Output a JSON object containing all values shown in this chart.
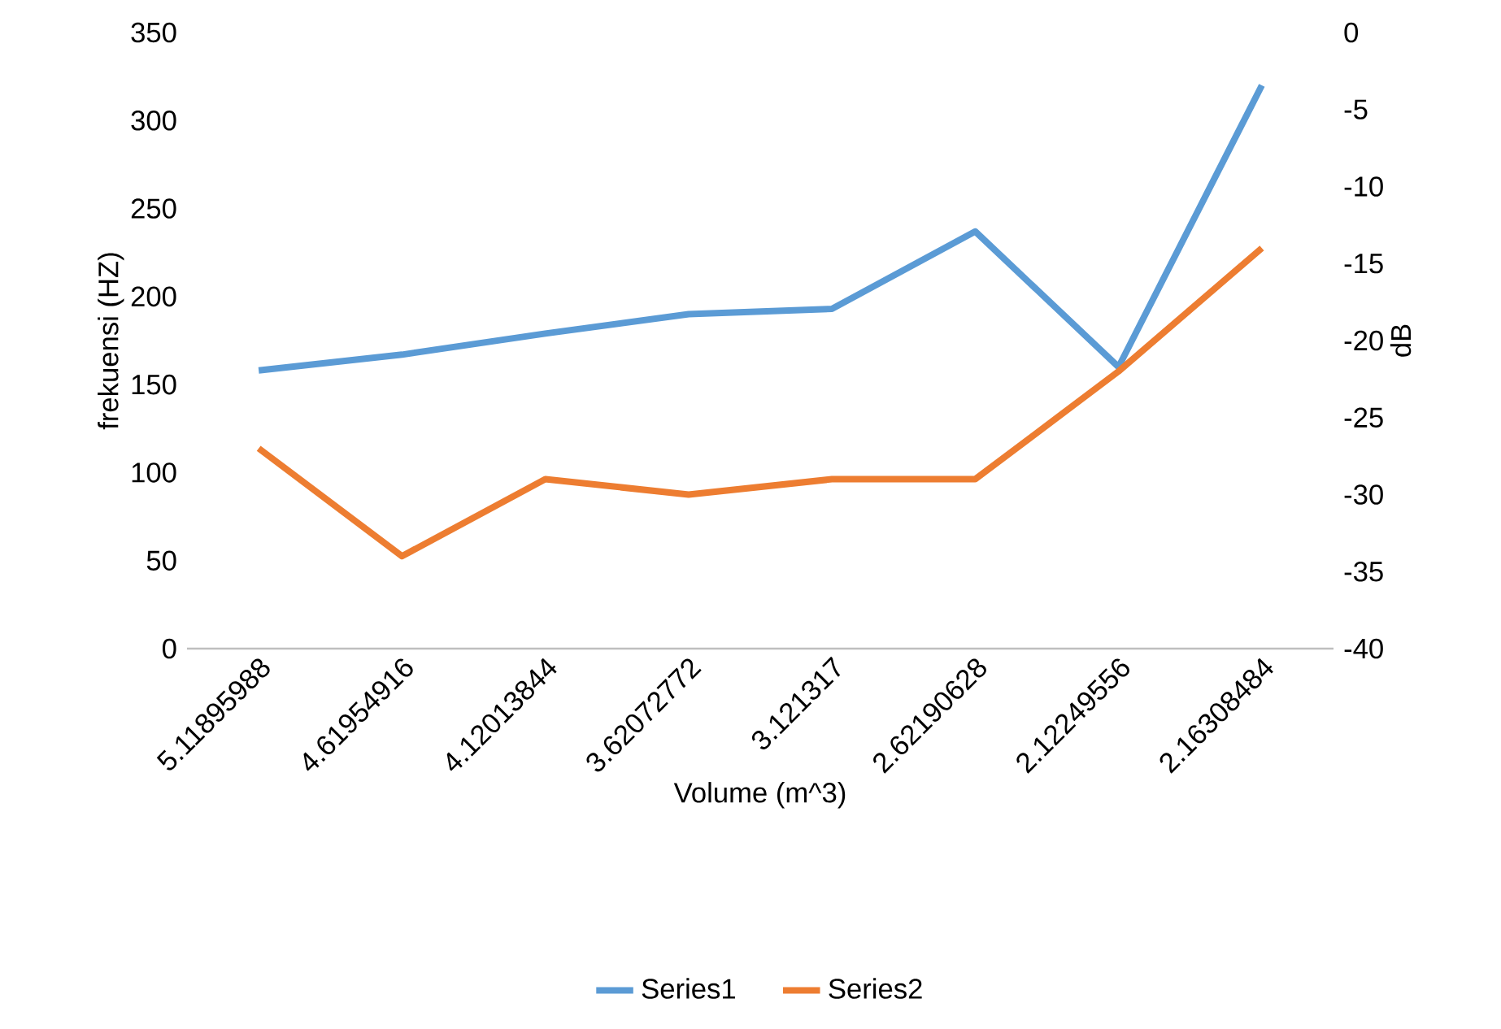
{
  "chart_data": {
    "type": "line",
    "xlabel": "Volume (m^3)",
    "ylabel": "frekuensi (HZ)",
    "y2label": "dB",
    "categories": [
      "5.11895988",
      "4.61954916",
      "4.12013844",
      "3.62072772",
      "3.121317",
      "2.62190628",
      "2.12249556",
      "2.16308484"
    ],
    "series": [
      {
        "name": "Series1",
        "color": "#5b9bd5",
        "values": [
          158,
          167,
          179,
          190,
          193,
          237,
          160,
          320
        ]
      },
      {
        "name": "Series2",
        "color": "#ed7d31",
        "axis": "y2",
        "values": [
          -27,
          -34,
          -29,
          -30,
          -29,
          -29,
          -22,
          -14
        ]
      }
    ],
    "ylim": [
      0,
      350
    ],
    "yticks": [
      0,
      50,
      100,
      150,
      200,
      250,
      300,
      350
    ],
    "y2lim": [
      -40,
      0
    ],
    "y2ticks": [
      -40,
      -35,
      -30,
      -25,
      -20,
      -15,
      -10,
      -5,
      0
    ],
    "grid": false,
    "legend": "bottom",
    "marker": "none",
    "line_style": "solid"
  }
}
